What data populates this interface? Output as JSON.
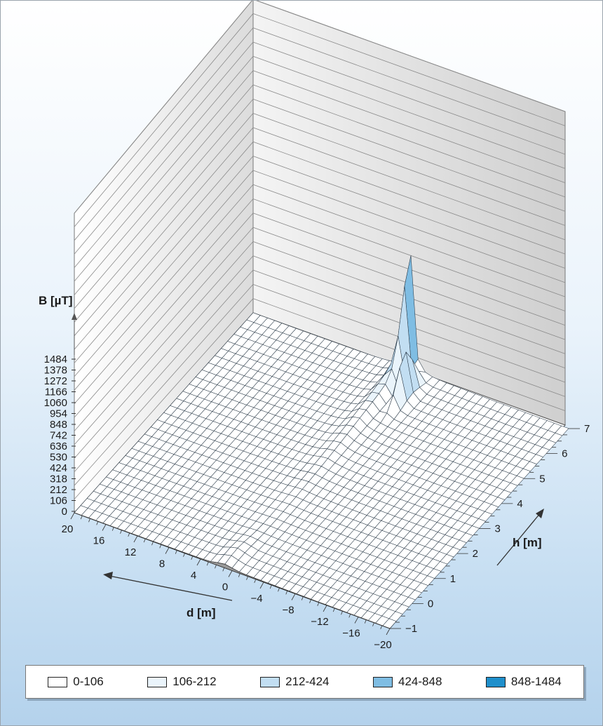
{
  "chart_data": {
    "type": "surface",
    "zlabel": "B [µT]",
    "xlabel": "d [m]",
    "ylabel": "h [m]",
    "z_ticks": [
      "0",
      "106",
      "212",
      "318",
      "424",
      "530",
      "636",
      "742",
      "848",
      "954",
      "1060",
      "1166",
      "1272",
      "1378",
      "1484"
    ],
    "d_ticks": [
      "20",
      "16",
      "12",
      "8",
      "4",
      "0",
      "−4",
      "−8",
      "−12",
      "−16",
      "−20"
    ],
    "h_ticks": [
      "−1",
      "0",
      "1",
      "2",
      "3",
      "4",
      "5",
      "6",
      "7"
    ],
    "zlim": [
      0,
      1484
    ],
    "dlim": [
      20,
      -20
    ],
    "hlim": [
      -1,
      7
    ],
    "peak": {
      "d": 0,
      "h": 7,
      "B": 1484
    },
    "legend": [
      {
        "label": "0-106",
        "color": "#ffffff"
      },
      {
        "label": "106-212",
        "color": "#eaf4fb"
      },
      {
        "label": "212-424",
        "color": "#c2def2"
      },
      {
        "label": "424-848",
        "color": "#7fbde3"
      },
      {
        "label": "848-1484",
        "color": "#1f8fcb"
      }
    ]
  }
}
